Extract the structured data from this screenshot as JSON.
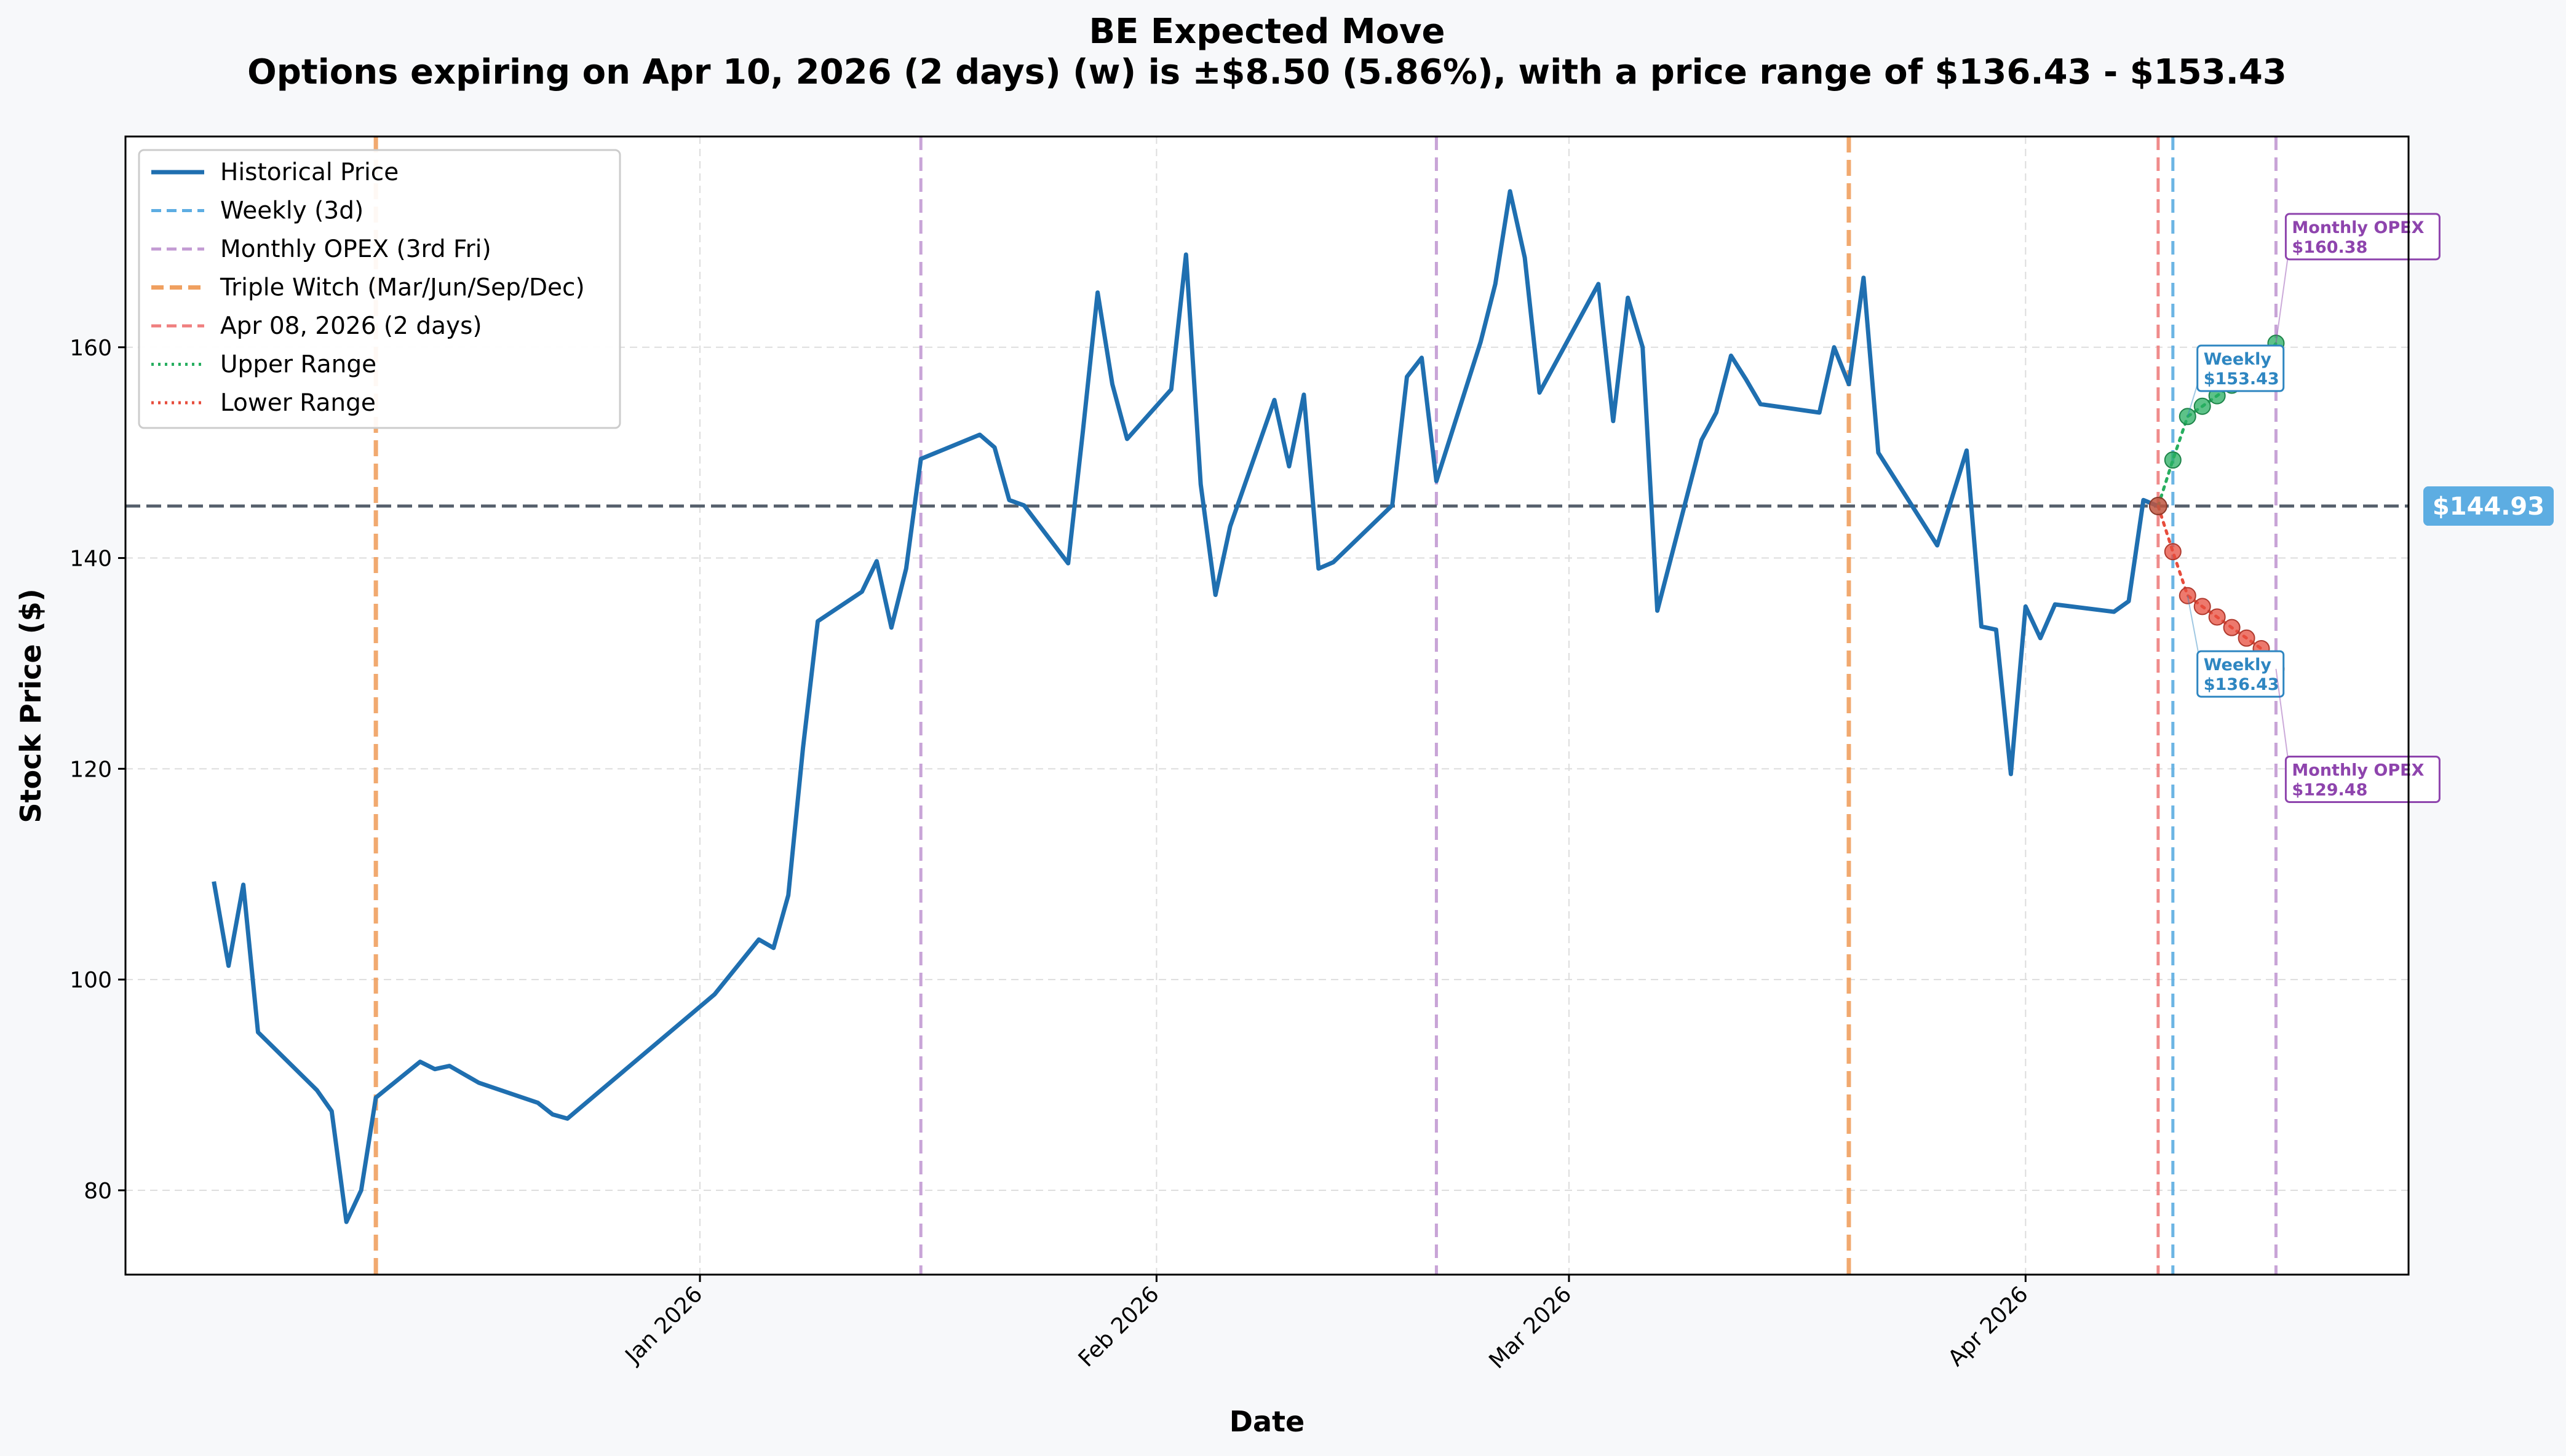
{
  "chart_data": {
    "type": "line",
    "title": "BE Expected Move",
    "subtitle": "Options expiring on Apr 10, 2026 (2 days) (w) is ±$8.50 (5.86%), with a price range of $136.43 - $153.43",
    "xlabel": "Date",
    "ylabel": "Stock Price ($)",
    "ylim": [
      72,
      180
    ],
    "xlim": [
      "2025-11-23",
      "2026-04-27"
    ],
    "y_ticks": [
      80,
      100,
      120,
      140,
      160
    ],
    "x_ticks": [
      {
        "date": "2026-01-01",
        "label": "Jan 2026"
      },
      {
        "date": "2026-02-01",
        "label": "Feb 2026"
      },
      {
        "date": "2026-03-01",
        "label": "Mar 2026"
      },
      {
        "date": "2026-04-01",
        "label": "Apr 2026"
      }
    ],
    "grid": true,
    "legend_position": "top-left",
    "current_price": 144.93,
    "current_price_label": "$144.93",
    "colors": {
      "price": "#1f6fb0",
      "weekly": "#5dade2",
      "monthly": "#c39bd3",
      "triple_witch": "#f0a060",
      "today": "#ef7f7f",
      "upper": "#27ae60",
      "lower": "#e74c3c",
      "current_line": "#555f6b",
      "current_badge": "#5dade2",
      "weekly_ann": "#2e86c1",
      "monthly_ann": "#8e44ad"
    },
    "series": [
      {
        "name": "Historical Price",
        "points": [
          [
            "2025-11-29",
            109.3
          ],
          [
            "2025-11-30",
            101.3
          ],
          [
            "2025-12-01",
            109.0
          ],
          [
            "2025-12-02",
            95.0
          ],
          [
            "2025-12-06",
            89.5
          ],
          [
            "2025-12-07",
            87.5
          ],
          [
            "2025-12-08",
            77.0
          ],
          [
            "2025-12-09",
            80.0
          ],
          [
            "2025-12-10",
            88.8
          ],
          [
            "2025-12-13",
            92.2
          ],
          [
            "2025-12-14",
            91.5
          ],
          [
            "2025-12-15",
            91.8
          ],
          [
            "2025-12-17",
            90.2
          ],
          [
            "2025-12-21",
            88.3
          ],
          [
            "2025-12-22",
            87.2
          ],
          [
            "2025-12-23",
            86.8
          ],
          [
            "2026-01-02",
            98.6
          ],
          [
            "2026-01-05",
            103.8
          ],
          [
            "2026-01-06",
            103.0
          ],
          [
            "2026-01-07",
            108.0
          ],
          [
            "2026-01-08",
            122.0
          ],
          [
            "2026-01-09",
            134.0
          ],
          [
            "2026-01-12",
            136.8
          ],
          [
            "2026-01-13",
            139.7
          ],
          [
            "2026-01-14",
            133.4
          ],
          [
            "2026-01-15",
            139.0
          ],
          [
            "2026-01-16",
            149.4
          ],
          [
            "2026-01-20",
            151.7
          ],
          [
            "2026-01-21",
            150.5
          ],
          [
            "2026-01-22",
            145.5
          ],
          [
            "2026-01-23",
            145.0
          ],
          [
            "2026-01-26",
            139.5
          ],
          [
            "2026-01-27",
            152.0
          ],
          [
            "2026-01-28",
            165.2
          ],
          [
            "2026-01-29",
            156.5
          ],
          [
            "2026-01-30",
            151.3
          ],
          [
            "2026-02-02",
            156.0
          ],
          [
            "2026-02-03",
            168.8
          ],
          [
            "2026-02-04",
            147.0
          ],
          [
            "2026-02-05",
            136.5
          ],
          [
            "2026-02-06",
            143.0
          ],
          [
            "2026-02-09",
            155.0
          ],
          [
            "2026-02-10",
            148.7
          ],
          [
            "2026-02-11",
            155.5
          ],
          [
            "2026-02-12",
            139.0
          ],
          [
            "2026-02-13",
            139.6
          ],
          [
            "2026-02-17",
            145.0
          ],
          [
            "2026-02-18",
            157.2
          ],
          [
            "2026-02-19",
            159.0
          ],
          [
            "2026-02-20",
            147.3
          ],
          [
            "2026-02-23",
            160.5
          ],
          [
            "2026-02-24",
            166.0
          ],
          [
            "2026-02-25",
            174.8
          ],
          [
            "2026-02-26",
            168.5
          ],
          [
            "2026-02-27",
            155.7
          ],
          [
            "2026-03-03",
            166.0
          ],
          [
            "2026-03-04",
            153.0
          ],
          [
            "2026-03-05",
            164.7
          ],
          [
            "2026-03-06",
            160.0
          ],
          [
            "2026-03-07",
            135.0
          ],
          [
            "2026-03-10",
            151.2
          ],
          [
            "2026-03-11",
            153.8
          ],
          [
            "2026-03-12",
            159.2
          ],
          [
            "2026-03-13",
            157.0
          ],
          [
            "2026-03-14",
            154.6
          ],
          [
            "2026-03-18",
            153.8
          ],
          [
            "2026-03-19",
            160.0
          ],
          [
            "2026-03-20",
            156.5
          ],
          [
            "2026-03-21",
            166.6
          ],
          [
            "2026-03-22",
            150.0
          ],
          [
            "2026-03-26",
            141.2
          ],
          [
            "2026-03-28",
            150.2
          ],
          [
            "2026-03-29",
            133.5
          ],
          [
            "2026-03-30",
            133.2
          ],
          [
            "2026-03-31",
            119.5
          ],
          [
            "2026-04-01",
            135.4
          ],
          [
            "2026-04-02",
            132.4
          ],
          [
            "2026-04-03",
            135.6
          ],
          [
            "2026-04-07",
            134.9
          ],
          [
            "2026-04-08",
            135.9
          ],
          [
            "2026-04-09",
            145.5
          ],
          [
            "2026-04-10",
            144.93
          ]
        ]
      },
      {
        "name": "Upper Range",
        "points": [
          [
            "2026-04-10",
            144.93
          ],
          [
            "2026-04-11",
            149.3
          ],
          [
            "2026-04-12",
            153.43
          ],
          [
            "2026-04-13",
            154.4
          ],
          [
            "2026-04-14",
            155.4
          ],
          [
            "2026-04-15",
            156.4
          ],
          [
            "2026-04-16",
            157.4
          ],
          [
            "2026-04-17",
            158.4
          ],
          [
            "2026-04-18",
            160.38
          ]
        ]
      },
      {
        "name": "Lower Range",
        "points": [
          [
            "2026-04-10",
            144.93
          ],
          [
            "2026-04-11",
            140.6
          ],
          [
            "2026-04-12",
            136.43
          ],
          [
            "2026-04-13",
            135.4
          ],
          [
            "2026-04-14",
            134.4
          ],
          [
            "2026-04-15",
            133.4
          ],
          [
            "2026-04-16",
            132.4
          ],
          [
            "2026-04-17",
            131.4
          ],
          [
            "2026-04-18",
            129.48
          ]
        ]
      }
    ],
    "vertical_lines": [
      {
        "date": "2025-12-10",
        "kind": "triple_witch"
      },
      {
        "date": "2026-01-16",
        "kind": "monthly"
      },
      {
        "date": "2026-02-20",
        "kind": "monthly"
      },
      {
        "date": "2026-03-20",
        "kind": "triple_witch"
      },
      {
        "date": "2026-04-10",
        "kind": "today"
      },
      {
        "date": "2026-04-11",
        "kind": "weekly"
      },
      {
        "date": "2026-04-18",
        "kind": "monthly"
      }
    ],
    "legend": [
      {
        "label": "Historical Price",
        "kind": "price"
      },
      {
        "label": "Weekly (3d)",
        "kind": "weekly"
      },
      {
        "label": "Monthly OPEX (3rd Fri)",
        "kind": "monthly"
      },
      {
        "label": "Triple Witch (Mar/Jun/Sep/Dec)",
        "kind": "triple_witch"
      },
      {
        "label": "Apr 08, 2026 (2 days)",
        "kind": "today"
      },
      {
        "label": "Upper Range",
        "kind": "upper"
      },
      {
        "label": "Lower Range",
        "kind": "lower"
      }
    ],
    "annotations": [
      {
        "line1": "Weekly",
        "line2": "$153.43",
        "kind": "weekly",
        "target_date": "2026-04-12",
        "target_value": 153.43,
        "box_date": "2026-04-13",
        "box_value": 158.0
      },
      {
        "line1": "Weekly",
        "line2": "$136.43",
        "kind": "weekly",
        "target_date": "2026-04-12",
        "target_value": 136.43,
        "box_date": "2026-04-13",
        "box_value": 129.0
      },
      {
        "line1": "Monthly OPEX",
        "line2": "$160.38",
        "kind": "monthly",
        "target_date": "2026-04-18",
        "target_value": 160.38,
        "box_date": "2026-04-19",
        "box_value": 170.5
      },
      {
        "line1": "Monthly OPEX",
        "line2": "$129.48",
        "kind": "monthly",
        "target_date": "2026-04-18",
        "target_value": 129.48,
        "box_date": "2026-04-19",
        "box_value": 119.0
      }
    ]
  }
}
